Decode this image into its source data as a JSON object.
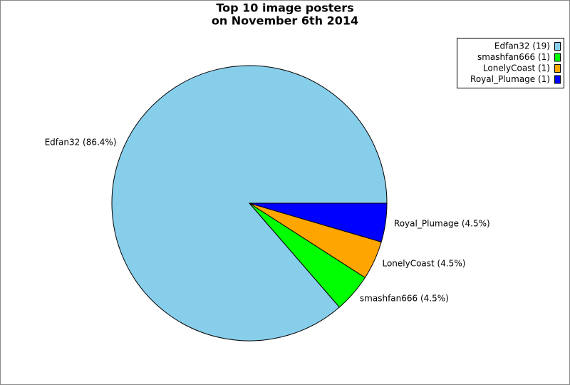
{
  "chart_data": {
    "type": "pie",
    "title": "Top 10 image posters",
    "subtitle": "on November 6th 2014",
    "categories": [
      "Edfan32",
      "smashfan666",
      "LonelyCoast",
      "Royal_Plumage"
    ],
    "values": [
      19,
      1,
      1,
      1
    ],
    "value_labels": [
      "Edfan32 (19)",
      "smashfan666 (1)",
      "LonelyCoast (1)",
      "Royal_Plumage (1)"
    ],
    "percents": [
      86.4,
      4.5,
      4.5,
      4.5
    ],
    "percent_labels": [
      "Edfan32 (86.4%)",
      "smashfan666 (4.5%)",
      "LonelyCoast (4.5%)",
      "Royal_Plumage (4.5%)"
    ],
    "colors": [
      "#87ceeb",
      "#00ff00",
      "#ffa500",
      "#0000ff"
    ],
    "legend": "upper right"
  }
}
